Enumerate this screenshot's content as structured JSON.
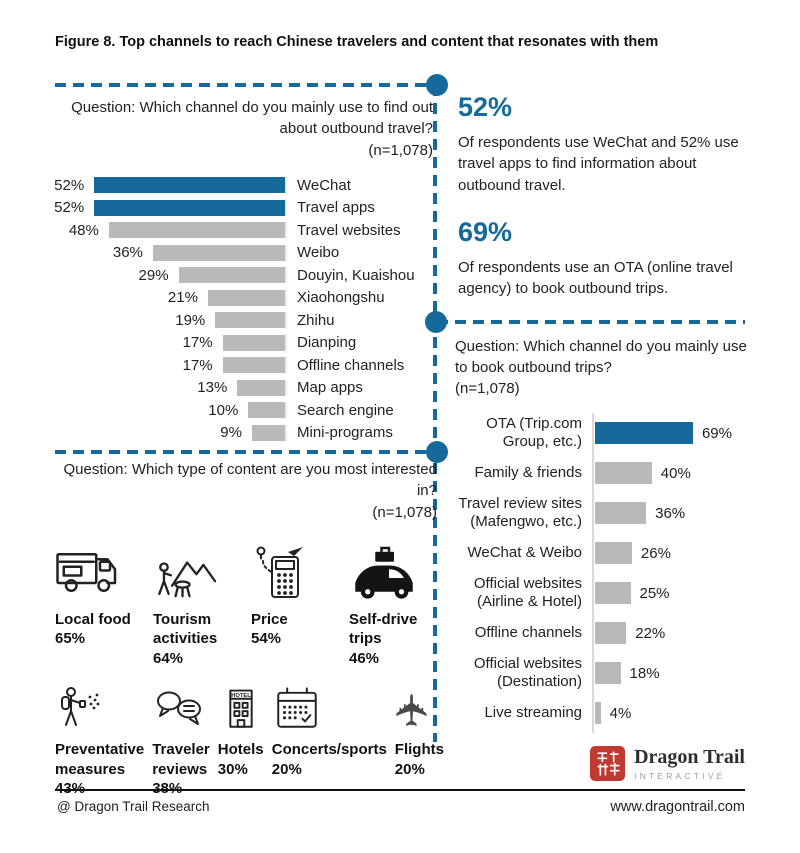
{
  "figure_title": "Figure 8. Top channels to reach Chinese travelers and content that resonates with them",
  "colors": {
    "accent": "#15699b",
    "bar_gray": "#b9b9b9",
    "axis_gray": "#d9d9d9",
    "logo_red": "#c13a31"
  },
  "callouts": [
    {
      "value": "52%",
      "text": "Of respondents use WeChat and 52% use travel apps to find information about outbound travel."
    },
    {
      "value": "69%",
      "text": "Of respondents use an OTA (online travel agency) to book outbound trips."
    }
  ],
  "chart_data": [
    {
      "type": "bar",
      "orientation": "horizontal-right-aligned",
      "title": "Question: Which channel do you mainly use to find out about outbound travel?",
      "n_label": "(n=1,078)",
      "xlim": [
        0,
        60
      ],
      "highlight_indices": [
        0,
        1
      ],
      "categories": [
        "WeChat",
        "Travel apps",
        "Travel websites",
        "Weibo",
        "Douyin, Kuaishou",
        "Xiaohongshu",
        "Zhihu",
        "Dianping",
        "Offline channels",
        "Map apps",
        "Search engine",
        "Mini-programs"
      ],
      "values": [
        52,
        52,
        48,
        36,
        29,
        21,
        19,
        17,
        17,
        13,
        10,
        9
      ],
      "value_labels": [
        "52%",
        "52%",
        "48%",
        "36%",
        "29%",
        "21%",
        "19%",
        "17%",
        "17%",
        "13%",
        "10%",
        "9%"
      ]
    },
    {
      "type": "bar",
      "orientation": "horizontal",
      "title": "Question: Which channel do you mainly use to book outbound trips?",
      "n_label": "(n=1,078)",
      "xlim": [
        0,
        75
      ],
      "highlight_indices": [
        0
      ],
      "categories": [
        "OTA (Trip.com Group, etc.)",
        "Family & friends",
        "Travel review sites (Mafengwo, etc.)",
        "WeChat & Weibo",
        "Official websites (Airline & Hotel)",
        "Offline channels",
        "Official websites (Destination)",
        "Live streaming"
      ],
      "values": [
        69,
        40,
        36,
        26,
        25,
        22,
        18,
        4
      ],
      "value_labels": [
        "69%",
        "40%",
        "36%",
        "26%",
        "25%",
        "22%",
        "18%",
        "4%"
      ]
    },
    {
      "type": "pictogram",
      "title": "Question: Which type of content are you most interested in?",
      "n_label": "(n=1,078)",
      "items": [
        {
          "label": "Local food",
          "value": 65,
          "value_label": "65%",
          "icon": "food-truck-icon"
        },
        {
          "label": "Tourism activities",
          "value": 64,
          "value_label": "64%",
          "icon": "tourism-activities-icon"
        },
        {
          "label": "Price",
          "value": 54,
          "value_label": "54%",
          "icon": "price-calculator-icon"
        },
        {
          "label": "Self-drive trips",
          "value": 46,
          "value_label": "46%",
          "icon": "self-drive-car-icon"
        },
        {
          "label": "Preventative measures",
          "value": 43,
          "value_label": "43%",
          "icon": "preventative-spray-icon"
        },
        {
          "label": "Traveler reviews",
          "value": 38,
          "value_label": "38%",
          "icon": "traveler-reviews-icon"
        },
        {
          "label": "Hotels",
          "value": 30,
          "value_label": "30%",
          "icon": "hotel-icon"
        },
        {
          "label": "Concerts/sports",
          "value": 20,
          "value_label": "20%",
          "icon": "calendar-icon"
        },
        {
          "label": "Flights",
          "value": 20,
          "value_label": "20%",
          "icon": "flight-icon"
        }
      ]
    }
  ],
  "footer": {
    "credit": "@ Dragon Trail Research",
    "website": "www.dragontrail.com",
    "logo_title": "Dragon Trail",
    "logo_subtitle": "INTERACTIVE"
  }
}
